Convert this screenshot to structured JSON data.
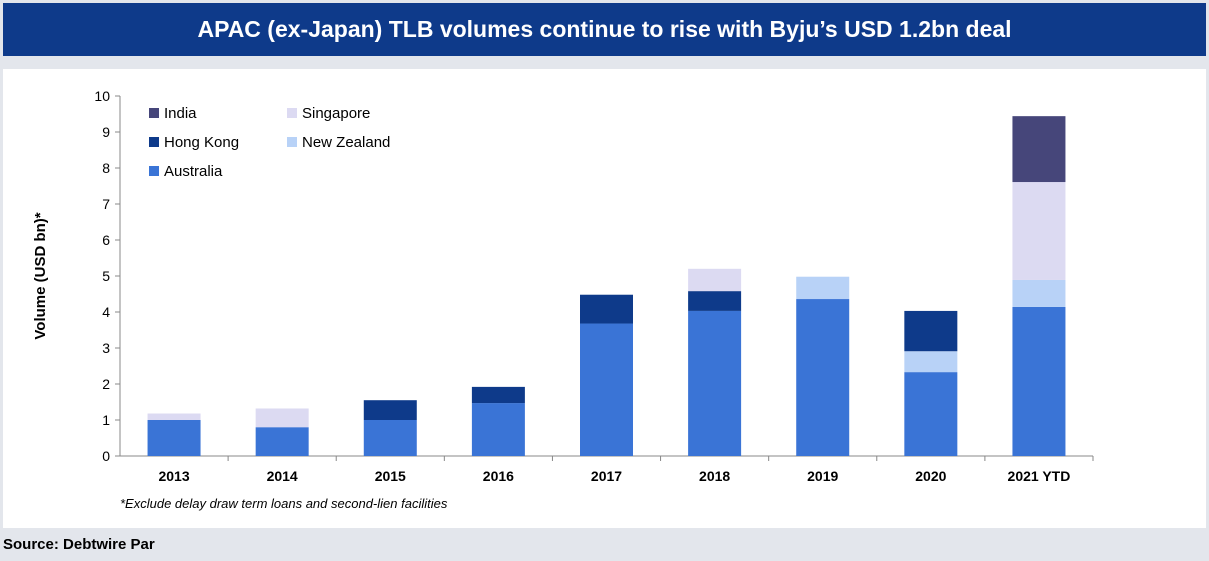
{
  "title": "APAC (ex-Japan) TLB volumes continue to rise with Byju’s USD 1.2bn deal",
  "footnote": "*Exclude delay draw term loans and second-lien facilities",
  "source": "Source: Debtwire Par",
  "chart_data": {
    "type": "bar",
    "stacked": true,
    "title": "APAC (ex-Japan) TLB volumes continue to rise with Byju’s USD 1.2bn deal",
    "xlabel": "",
    "ylabel": "Volume (USD bn)*",
    "ylim": [
      0,
      10
    ],
    "yticks": [
      0,
      1,
      2,
      3,
      4,
      5,
      6,
      7,
      8,
      9,
      10
    ],
    "grid": false,
    "legend_position": "top-left",
    "categories": [
      "2013",
      "2014",
      "2015",
      "2016",
      "2017",
      "2018",
      "2019",
      "2020",
      "2021 YTD"
    ],
    "series": [
      {
        "name": "Australia",
        "color": "#3a74d6",
        "values": [
          1.0,
          0.8,
          1.0,
          1.47,
          3.68,
          4.03,
          4.36,
          2.33,
          4.14
        ]
      },
      {
        "name": "New Zealand",
        "color": "#b8d2f7",
        "values": [
          0,
          0,
          0,
          0,
          0,
          0,
          0.62,
          0.58,
          0.75
        ]
      },
      {
        "name": "Hong Kong",
        "color": "#0e3a8a",
        "values": [
          0,
          0,
          0.55,
          0.45,
          0.8,
          0.55,
          0,
          1.12,
          0
        ]
      },
      {
        "name": "Singapore",
        "color": "#dcdaf2",
        "values": [
          0.18,
          0.52,
          0,
          0,
          0,
          0.62,
          0,
          0,
          2.72
        ]
      },
      {
        "name": "India",
        "color": "#46467a",
        "values": [
          0,
          0,
          0,
          0,
          0,
          0,
          0,
          0,
          1.83
        ]
      }
    ],
    "legend_order": [
      "India",
      "Singapore",
      "Hong Kong",
      "New Zealand",
      "Australia"
    ]
  }
}
